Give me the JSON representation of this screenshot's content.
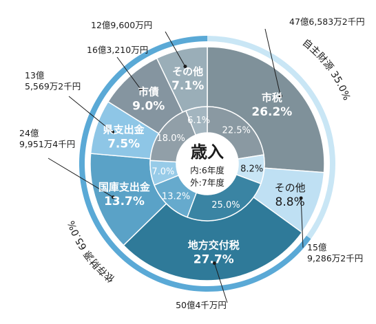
{
  "chart_data": {
    "type": "pie",
    "title": "歳入",
    "center_notes": [
      "内:6年度",
      "外:7年度"
    ],
    "outer_ring": {
      "year": "7年度",
      "slices": [
        {
          "name": "市税",
          "percent": "26.2%",
          "value": 26.2,
          "amount": "47億6,583万2千円",
          "color": "#7f919a"
        },
        {
          "name": "その他",
          "percent": "8.8%",
          "value": 8.8,
          "amount": "15億\n9,286万2千円",
          "color": "#bfe0f3"
        },
        {
          "name": "地方交付税",
          "percent": "27.7%",
          "value": 27.7,
          "amount": "50億4千万円",
          "color": "#2f7a99"
        },
        {
          "name": "国庫支出金",
          "percent": "13.7%",
          "value": 13.7,
          "amount": "24億\n9,951万4千円",
          "color": "#5aa2c7"
        },
        {
          "name": "県支出金",
          "percent": "7.5%",
          "value": 7.5,
          "amount": "13億\n5,569万2千円",
          "color": "#8ec6e6"
        },
        {
          "name": "市債",
          "percent": "9.0%",
          "value": 9.0,
          "amount": "16億3,210万円",
          "color": "#8595a0"
        },
        {
          "name": "その他",
          "percent": "7.1%",
          "value": 7.1,
          "amount": "12億9,600万円",
          "color": "#9aaeb8"
        }
      ]
    },
    "inner_ring": {
      "year": "6年度",
      "slices": [
        {
          "percent": "22.5%",
          "value": 22.5,
          "color": "#8a99a2"
        },
        {
          "percent": "8.2%",
          "value": 8.2,
          "color": "#c8e5f5"
        },
        {
          "percent": "25.0%",
          "value": 25.0,
          "color": "#3a84a3"
        },
        {
          "percent": "13.2%",
          "value": 13.2,
          "color": "#66aacd"
        },
        {
          "percent": "7.0%",
          "value": 7.0,
          "color": "#97cbe8"
        },
        {
          "percent": "18.0%",
          "value": 18.0,
          "color": "#919fa8"
        },
        {
          "percent": "6.1%",
          "value": 6.1,
          "color": "#a3b5bf"
        }
      ]
    },
    "groups": [
      {
        "name": "自主財源",
        "percent": "35.0%",
        "value": 35.0,
        "color": "#c9e6f5"
      },
      {
        "name": "依存財源",
        "percent": "65.0%",
        "value": 65.0,
        "color": "#5aa9d6"
      }
    ]
  }
}
